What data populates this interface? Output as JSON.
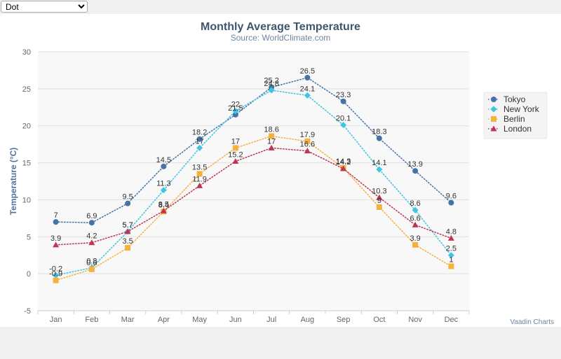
{
  "toolbar": {
    "dash_style_select": {
      "value": "Dot",
      "options": [
        "Dot"
      ]
    }
  },
  "colors": {
    "title": "#3e576f",
    "plot_background": "#f8f8f8",
    "grid": "#e0e0e0"
  },
  "credits": "Vaadin Charts",
  "chart_data": {
    "type": "line",
    "title": "Monthly Average Temperature",
    "subtitle": "Source: WorldClimate.com",
    "xlabel": "",
    "ylabel": "Temperature (°C)",
    "categories": [
      "Jan",
      "Feb",
      "Mar",
      "Apr",
      "May",
      "Jun",
      "Jul",
      "Aug",
      "Sep",
      "Oct",
      "Nov",
      "Dec"
    ],
    "ylim": [
      -5,
      30
    ],
    "yticks": [
      -5,
      0,
      5,
      10,
      15,
      20,
      25,
      30
    ],
    "grid": true,
    "line_style": "dotted",
    "data_labels": true,
    "legend": {
      "placement": "right",
      "layout": "vertical"
    },
    "series": [
      {
        "name": "Tokyo",
        "color": "#4572a7",
        "marker": "circle",
        "values": [
          7.0,
          6.9,
          9.5,
          14.5,
          18.2,
          21.5,
          25.2,
          26.5,
          23.3,
          18.3,
          13.9,
          9.6
        ]
      },
      {
        "name": "New York",
        "color": "#3ec5e0",
        "marker": "diamond",
        "values": [
          -0.2,
          0.8,
          5.7,
          11.3,
          17.0,
          22.0,
          24.8,
          24.1,
          20.1,
          14.1,
          8.6,
          2.5
        ]
      },
      {
        "name": "Berlin",
        "color": "#f4b13e",
        "marker": "square",
        "values": [
          -0.9,
          0.6,
          3.5,
          8.4,
          13.5,
          17.0,
          18.6,
          17.9,
          14.3,
          9.0,
          3.9,
          1.0
        ]
      },
      {
        "name": "London",
        "color": "#bd3550",
        "marker": "triangle",
        "values": [
          3.9,
          4.2,
          5.7,
          8.5,
          11.9,
          15.2,
          17.0,
          16.6,
          14.2,
          10.3,
          6.6,
          4.8
        ]
      }
    ]
  }
}
